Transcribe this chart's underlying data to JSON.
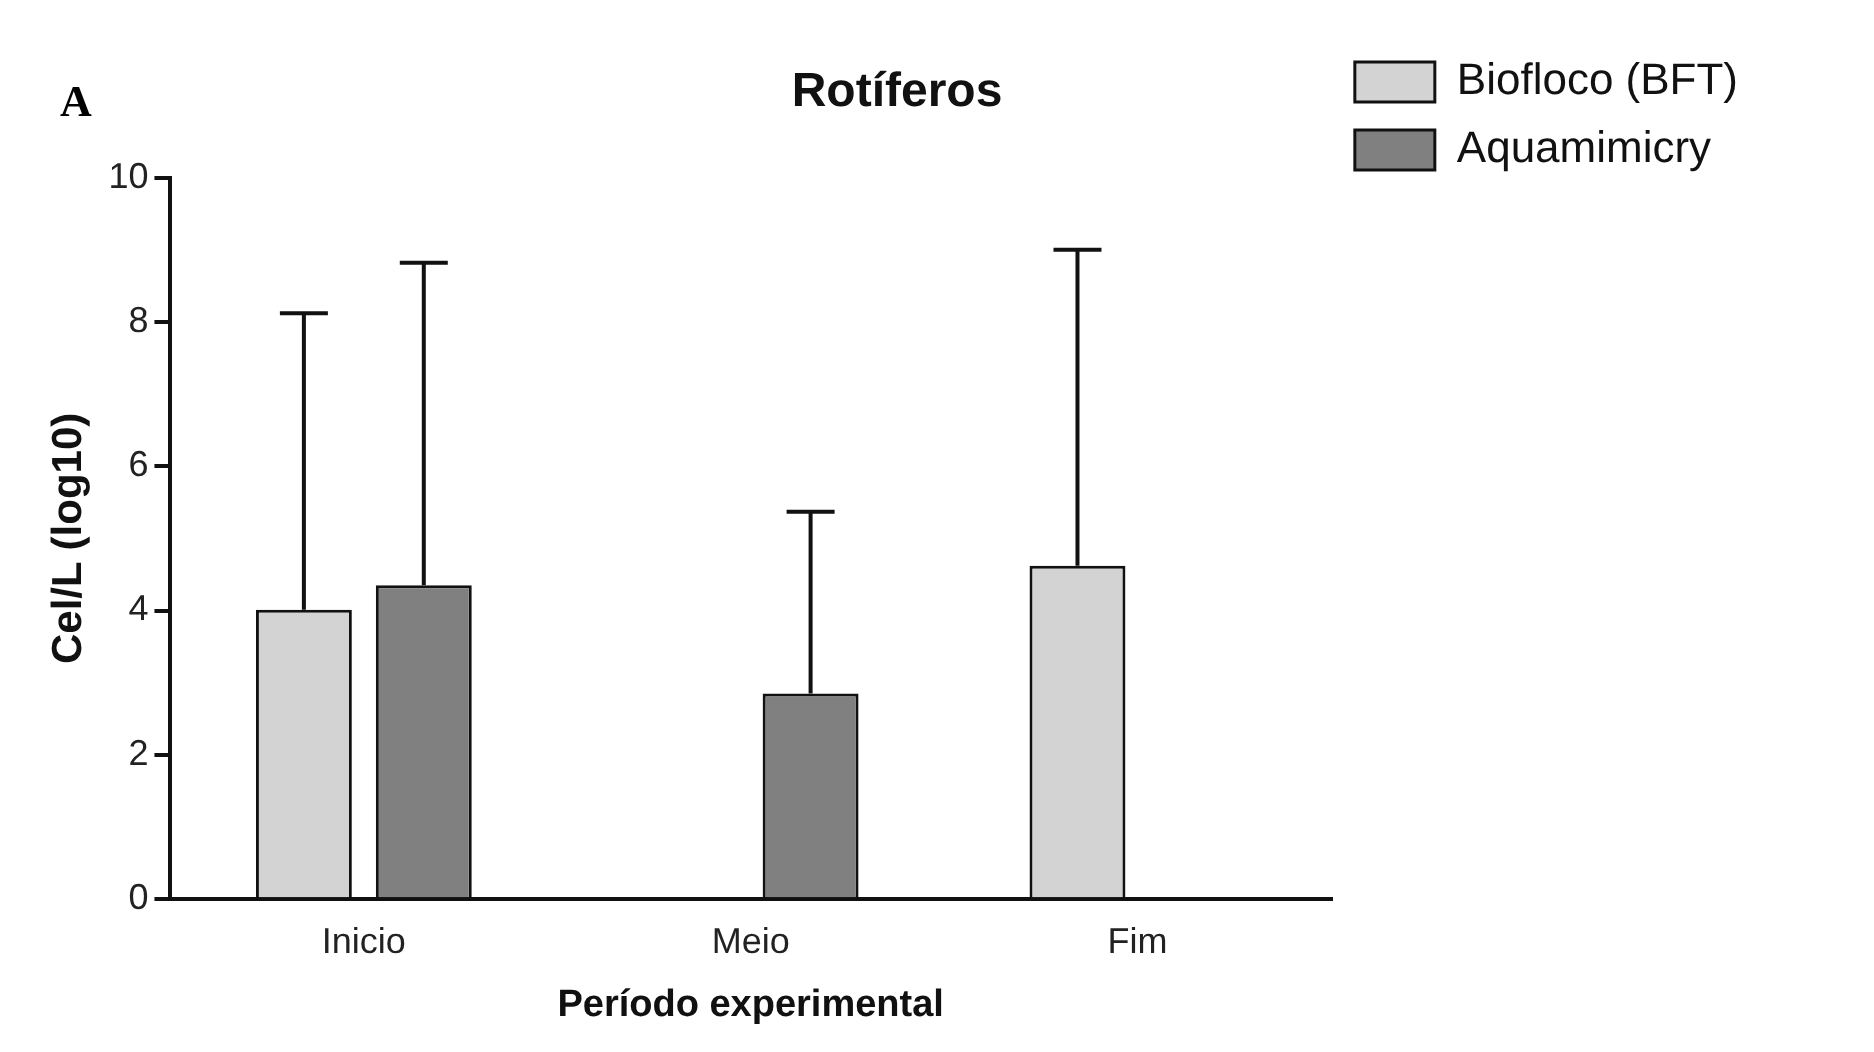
{
  "chart_data": {
    "type": "bar",
    "title": "Rotíferos",
    "xlabel": "Período experimental",
    "ylabel": "Cel/L (log10)",
    "annotations": [
      "A"
    ],
    "categories": [
      "Inicio",
      "Meio",
      "Fim"
    ],
    "series": [
      {
        "name": "Biofloco (BFT)",
        "color": "#d3d3d3",
        "values": [
          4.01,
          null,
          4.62
        ],
        "errors": [
          [
            4.01,
            8.12
          ],
          null,
          [
            4.62,
            9.0
          ]
        ]
      },
      {
        "name": "Aquamimicry",
        "color": "#808080",
        "values": [
          4.35,
          2.85,
          null
        ],
        "errors": [
          [
            4.35,
            8.82
          ],
          [
            2.85,
            5.37
          ],
          null
        ]
      }
    ],
    "ylim": [
      0,
      10
    ],
    "yticks": [
      0,
      2,
      4,
      6,
      8,
      10
    ],
    "grid": false,
    "legend": "top right"
  }
}
